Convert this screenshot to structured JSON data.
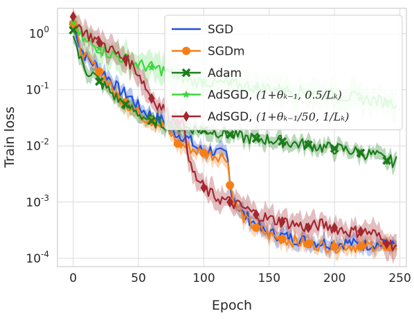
{
  "chart_data": {
    "type": "line",
    "xlabel": "Epoch",
    "ylabel": "Train loss",
    "xlim": [
      -12,
      255
    ],
    "ylim_log10": [
      -4.15,
      0.45
    ],
    "yscale": "log",
    "xticks": [
      0,
      50,
      100,
      150,
      200,
      250
    ],
    "yticks": [
      {
        "mantissa": "10",
        "exp": "0",
        "value": 1
      },
      {
        "mantissa": "10",
        "exp": "-1",
        "value": 0.1
      },
      {
        "mantissa": "10",
        "exp": "-2",
        "value": 0.01
      },
      {
        "mantissa": "10",
        "exp": "-3",
        "value": 0.001
      },
      {
        "mantissa": "10",
        "exp": "-4",
        "value": 0.0001
      }
    ],
    "grid": true,
    "legend_position": "top-right",
    "series": [
      {
        "name": "SGD",
        "color": "#1f4fe0",
        "marker": "none",
        "band": 0.3,
        "x": [
          0,
          3,
          5,
          8,
          10,
          15,
          20,
          25,
          30,
          35,
          40,
          45,
          50,
          55,
          60,
          65,
          70,
          75,
          80,
          85,
          90,
          95,
          100,
          105,
          110,
          115,
          118,
          120,
          125,
          130,
          135,
          140,
          145,
          150,
          160,
          170,
          180,
          190,
          200,
          210,
          220,
          230,
          240,
          248
        ],
        "y": [
          1.6,
          0.95,
          0.6,
          0.45,
          0.38,
          0.3,
          0.25,
          0.18,
          0.14,
          0.1,
          0.085,
          0.07,
          0.05,
          0.04,
          0.035,
          0.03,
          0.028,
          0.02,
          0.016,
          0.015,
          0.012,
          0.009,
          0.008,
          0.0085,
          0.0075,
          0.007,
          0.0072,
          0.002,
          0.0009,
          0.0006,
          0.0005,
          0.0004,
          0.0003,
          0.00028,
          0.00025,
          0.00022,
          0.0002,
          0.00019,
          0.00018,
          0.00019,
          0.00017,
          0.00018,
          0.00017,
          0.00016
        ]
      },
      {
        "name": "SGDm",
        "color": "#f57f17",
        "marker": "circle",
        "band": 0.3,
        "x": [
          0,
          3,
          5,
          10,
          15,
          20,
          25,
          30,
          35,
          40,
          45,
          50,
          55,
          60,
          65,
          70,
          75,
          80,
          85,
          90,
          95,
          100,
          105,
          110,
          115,
          118,
          120,
          125,
          130,
          135,
          140,
          145,
          150,
          160,
          170,
          180,
          190,
          200,
          210,
          220,
          230,
          240,
          248
        ],
        "y": [
          1.5,
          0.9,
          0.55,
          0.35,
          0.28,
          0.21,
          0.15,
          0.1,
          0.075,
          0.06,
          0.045,
          0.04,
          0.032,
          0.028,
          0.025,
          0.022,
          0.016,
          0.011,
          0.01,
          0.009,
          0.008,
          0.0075,
          0.007,
          0.0068,
          0.0065,
          0.0068,
          0.002,
          0.0008,
          0.00055,
          0.00042,
          0.00035,
          0.0003,
          0.00026,
          0.00022,
          0.0002,
          0.00018,
          0.00017,
          0.00016,
          0.00017,
          0.00016,
          0.00017,
          0.00016,
          0.00016
        ],
        "markers_x": [
          0,
          20,
          40,
          60,
          80,
          100,
          120,
          140,
          160,
          180,
          200,
          220,
          240
        ]
      },
      {
        "name": "Adam",
        "color": "#1b7d1b",
        "marker": "x",
        "band": 0.3,
        "x": [
          0,
          3,
          5,
          8,
          10,
          15,
          20,
          25,
          30,
          35,
          40,
          45,
          50,
          55,
          60,
          65,
          70,
          75,
          80,
          85,
          90,
          95,
          100,
          110,
          120,
          130,
          140,
          150,
          160,
          170,
          180,
          190,
          200,
          210,
          220,
          230,
          240,
          248
        ],
        "y": [
          1.15,
          0.55,
          0.35,
          0.28,
          0.22,
          0.19,
          0.14,
          0.11,
          0.085,
          0.065,
          0.055,
          0.045,
          0.038,
          0.032,
          0.028,
          0.026,
          0.025,
          0.024,
          0.023,
          0.021,
          0.021,
          0.02,
          0.019,
          0.018,
          0.016,
          0.014,
          0.0135,
          0.013,
          0.012,
          0.011,
          0.0105,
          0.0095,
          0.009,
          0.0085,
          0.0075,
          0.007,
          0.0055,
          0.0052
        ],
        "markers_x": [
          0,
          20,
          40,
          60,
          80,
          100,
          120,
          140,
          160,
          180,
          200,
          220,
          240
        ]
      },
      {
        "name_prefix": "AdSGD, ",
        "name_math": "(1+θₖ₋₁, 0.5/Lₖ)",
        "color": "#3dd63d",
        "marker": "star",
        "band": 0.55,
        "x": [
          0,
          5,
          10,
          20,
          30,
          40,
          50,
          60,
          70,
          75,
          80,
          85,
          90,
          100,
          110,
          120,
          130,
          140,
          150,
          160,
          170,
          180,
          190,
          200,
          210,
          220,
          230,
          240,
          248
        ],
        "y": [
          1.6,
          0.9,
          0.7,
          0.55,
          0.42,
          0.35,
          0.28,
          0.25,
          0.22,
          0.19,
          0.17,
          0.16,
          0.14,
          0.14,
          0.13,
          0.13,
          0.12,
          0.11,
          0.11,
          0.1,
          0.095,
          0.09,
          0.085,
          0.08,
          0.075,
          0.07,
          0.065,
          0.06,
          0.06
        ],
        "markers_x": [
          0,
          20,
          40,
          60,
          80,
          100,
          120,
          140,
          160,
          180,
          200,
          220,
          240
        ]
      },
      {
        "name_prefix": "AdSGD, ",
        "name_math": "(1+θₖ₋₁/50, 1/Lₖ)",
        "color": "#a3272e",
        "marker": "diamond",
        "band": 0.45,
        "x": [
          0,
          5,
          10,
          15,
          20,
          25,
          30,
          35,
          40,
          45,
          50,
          55,
          60,
          65,
          70,
          75,
          80,
          85,
          90,
          95,
          100,
          105,
          110,
          120,
          130,
          140,
          150,
          160,
          170,
          180,
          190,
          200,
          210,
          220,
          230,
          240,
          248
        ],
        "y": [
          2.0,
          1.3,
          1.0,
          0.85,
          0.7,
          0.6,
          0.5,
          0.4,
          0.35,
          0.28,
          0.2,
          0.12,
          0.07,
          0.055,
          0.045,
          0.03,
          0.026,
          0.023,
          0.004,
          0.0025,
          0.0018,
          0.0014,
          0.0012,
          0.001,
          0.0008,
          0.0006,
          0.0005,
          0.00045,
          0.0004,
          0.00035,
          0.0004,
          0.00035,
          0.0003,
          0.0003,
          0.00028,
          0.00018,
          0.00017
        ],
        "markers_x": [
          0,
          20,
          40,
          60,
          80,
          100,
          120,
          140,
          160,
          180,
          200,
          220,
          240
        ]
      }
    ]
  }
}
